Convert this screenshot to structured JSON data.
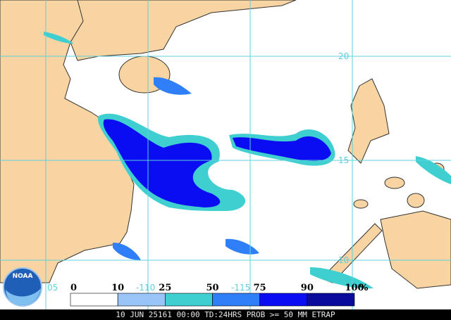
{
  "map": {
    "grid_labels": {
      "lat": [
        "20",
        "15",
        "10"
      ],
      "lon": [
        "-110",
        "-115"
      ],
      "corner": "05"
    },
    "legend": {
      "values": [
        0,
        10,
        25,
        50,
        75,
        90,
        100
      ],
      "unit": "%",
      "colors": [
        "#ffffff",
        "#99c4f8",
        "#3fcfd0",
        "#2f7ff8",
        "#0a0cf2",
        "#0a0a9c"
      ]
    },
    "logo": "NOAA",
    "footer": "10 JUN 25161 00:00 TD:24HRS PROB >= 50 MM ETRAP"
  }
}
